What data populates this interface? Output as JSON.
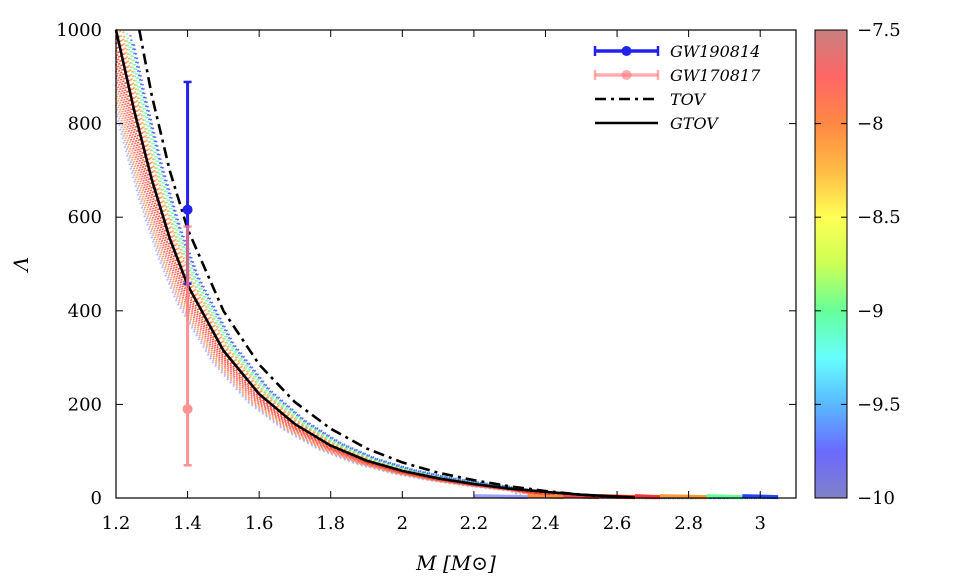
{
  "chart_data": {
    "type": "line",
    "xlabel": "M [M⊙]",
    "ylabel": "Λ",
    "xlim": [
      1.2,
      3.1
    ],
    "ylim": [
      0,
      1000
    ],
    "x_ticks": [
      "1.2",
      "1.4",
      "1.6",
      "1.8",
      "2",
      "2.2",
      "2.4",
      "2.6",
      "2.8",
      "3"
    ],
    "y_ticks": [
      "0",
      "200",
      "400",
      "600",
      "800",
      "1000"
    ],
    "legend_position": "top-right",
    "legend": [
      "GW190814",
      "GW170817",
      "TOV",
      "GTOV"
    ],
    "series": [
      {
        "name": "TOV",
        "style": "dash-dot",
        "color": "#000000",
        "points": [
          [
            1.265,
            1000
          ],
          [
            1.3,
            860
          ],
          [
            1.35,
            700
          ],
          [
            1.4,
            575
          ],
          [
            1.5,
            400
          ],
          [
            1.6,
            285
          ],
          [
            1.7,
            205
          ],
          [
            1.8,
            148
          ],
          [
            1.9,
            106
          ],
          [
            2.0,
            76
          ],
          [
            2.1,
            54
          ],
          [
            2.2,
            38
          ],
          [
            2.3,
            25
          ],
          [
            2.4,
            15
          ],
          [
            2.5,
            7
          ],
          [
            2.6,
            2
          ]
        ]
      },
      {
        "name": "GTOV",
        "style": "solid",
        "color": "#000000",
        "points": [
          [
            1.2,
            1000
          ],
          [
            1.25,
            830
          ],
          [
            1.3,
            680
          ],
          [
            1.35,
            555
          ],
          [
            1.4,
            455
          ],
          [
            1.5,
            315
          ],
          [
            1.6,
            222
          ],
          [
            1.7,
            158
          ],
          [
            1.8,
            112
          ],
          [
            1.9,
            80
          ],
          [
            2.0,
            58
          ],
          [
            2.1,
            42
          ],
          [
            2.2,
            30
          ],
          [
            2.3,
            20
          ],
          [
            2.4,
            13
          ],
          [
            2.5,
            7
          ],
          [
            2.6,
            3
          ],
          [
            2.65,
            1
          ]
        ]
      }
    ],
    "error_points": [
      {
        "name": "GW190814",
        "x": 1.4,
        "y": 616,
        "y_low": 458,
        "y_high": 889,
        "color": "#2222ee"
      },
      {
        "name": "GW170817",
        "x": 1.4,
        "y": 190,
        "y_low": 70,
        "y_high": 580,
        "color": "#ff7777"
      }
    ],
    "colorbar": {
      "range": [
        -10,
        -7.5
      ],
      "ticks": [
        "−7.5",
        "−8",
        "−8.5",
        "−9",
        "−9.5",
        "−10"
      ],
      "tick_values": [
        -7.5,
        -8,
        -8.5,
        -9,
        -9.5,
        -10
      ],
      "colors": [
        "#8080c8",
        "#6a6aff",
        "#5ab8ff",
        "#66ffff",
        "#66ff99",
        "#ccff55",
        "#ffff55",
        "#ffbb44",
        "#ff8844",
        "#ff6666",
        "#c88080"
      ]
    },
    "scatter_band": {
      "description_free": true,
      "end_points": [
        [
          2.35,
          "#a0a0ff"
        ],
        [
          2.45,
          "#ff8844"
        ],
        [
          2.55,
          "#ff4444"
        ],
        [
          2.65,
          "#ff2200"
        ],
        [
          2.72,
          "#ff3333"
        ],
        [
          2.85,
          "#ff9933"
        ],
        [
          2.95,
          "#66ff99"
        ],
        [
          3.05,
          "#2244ff"
        ]
      ]
    }
  }
}
